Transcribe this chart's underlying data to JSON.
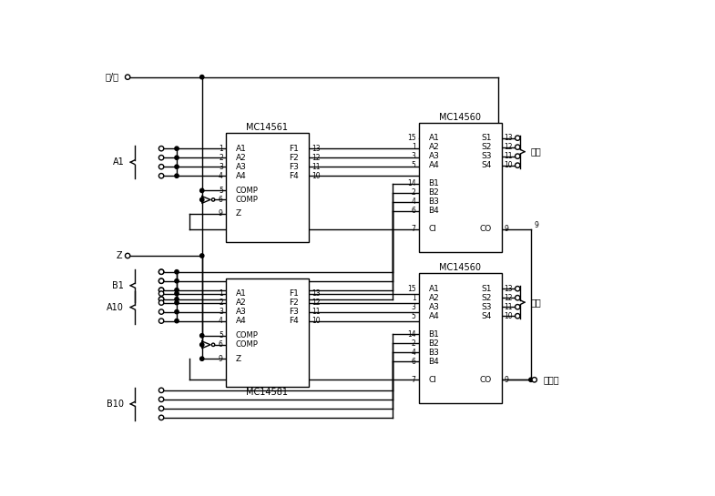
{
  "bg": "#ffffff",
  "add_sub": "加/减",
  "Z_lbl": "Z",
  "A1_lbl": "A1",
  "B1_lbl": "B1",
  "A10_lbl": "A10",
  "B10_lbl": "B10",
  "box1_lbl": "MC14561",
  "box2_lbl": "MC14560",
  "box3_lbl": "MC14581",
  "box4_lbl": "MC14560",
  "units_lbl": "个位",
  "tens_lbl": "十位",
  "sign_lbl": "符号位"
}
